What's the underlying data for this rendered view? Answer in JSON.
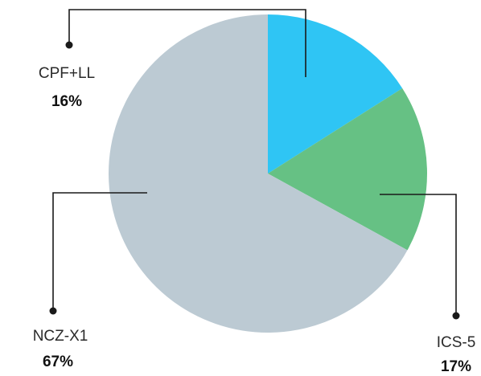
{
  "chart_data": {
    "type": "pie",
    "title": "",
    "slices": [
      {
        "label": "CPF+LL",
        "value": 16,
        "display": "16%",
        "color": "#2fc5f4"
      },
      {
        "label": "ICS-5",
        "value": 17,
        "display": "17%",
        "color": "#66c184"
      },
      {
        "label": "NCZ-X1",
        "value": 67,
        "display": "67%",
        "color": "#bccad3"
      }
    ],
    "start": "12 o'clock",
    "direction": "clockwise",
    "legend": "none",
    "labels": "leader lines with dots"
  }
}
